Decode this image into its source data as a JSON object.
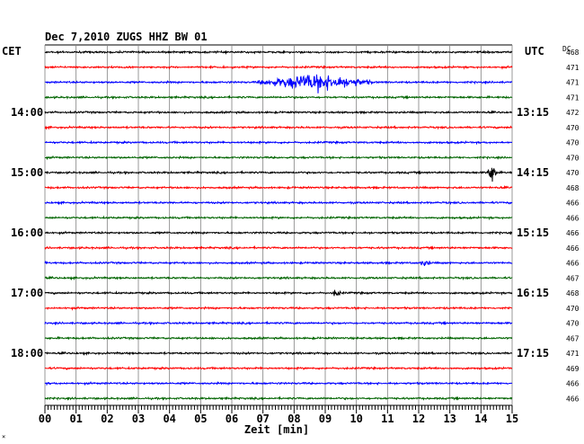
{
  "chart_data": {
    "type": "line",
    "kind": "helicorder",
    "title": "Dec 7,2010   ZUGS HHZ BW 01",
    "left_axis_label": "CET",
    "right_axis_label": "UTC",
    "dc_label": "DC",
    "xlabel": "Zeit [min]",
    "xlim": [
      0,
      15
    ],
    "x_ticks": [
      "00",
      "01",
      "02",
      "03",
      "04",
      "05",
      "06",
      "07",
      "08",
      "09",
      "10",
      "11",
      "12",
      "13",
      "14",
      "15"
    ],
    "grid": "vertical-minute-lines",
    "trace_colors": [
      "#000000",
      "#ff0000",
      "#0000ff",
      "#006400"
    ],
    "left_time_labels": [
      {
        "row": 4,
        "label": "14:00"
      },
      {
        "row": 8,
        "label": "15:00"
      },
      {
        "row": 12,
        "label": "16:00"
      },
      {
        "row": 16,
        "label": "17:00"
      },
      {
        "row": 20,
        "label": "18:00"
      }
    ],
    "right_time_labels": [
      {
        "row": 4,
        "label": "13:15"
      },
      {
        "row": 8,
        "label": "14:15"
      },
      {
        "row": 12,
        "label": "15:15"
      },
      {
        "row": 16,
        "label": "16:15"
      },
      {
        "row": 20,
        "label": "17:15"
      }
    ],
    "dc_values": [
      468,
      471,
      471,
      471,
      472,
      470,
      470,
      470,
      470,
      468,
      466,
      466,
      466,
      466,
      466,
      467,
      468,
      470,
      470,
      467,
      471,
      469,
      466,
      466
    ],
    "events": [
      {
        "row": 2,
        "start_min": 6.8,
        "end_min": 10.5,
        "peak_min": 8.7,
        "amplitude": 1.0
      },
      {
        "row": 8,
        "start_min": 14.2,
        "end_min": 14.6,
        "peak_min": 14.35,
        "amplitude": 1.2
      },
      {
        "row": 14,
        "start_min": 12.0,
        "end_min": 12.4,
        "peak_min": 12.2,
        "amplitude": 0.35
      },
      {
        "row": 16,
        "start_min": 9.25,
        "end_min": 9.55,
        "peak_min": 9.35,
        "amplitude": 0.5
      }
    ],
    "footnote": "×"
  }
}
